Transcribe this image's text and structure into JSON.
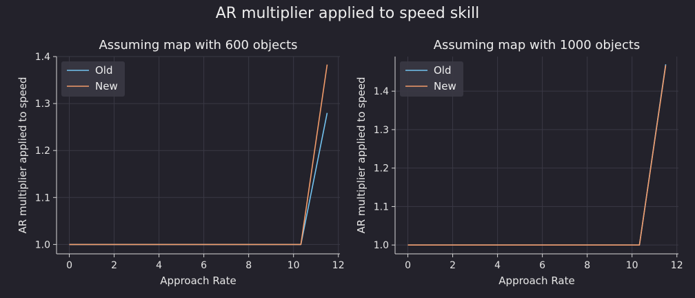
{
  "figure": {
    "title": "AR multiplier applied to speed skill"
  },
  "colors": {
    "background": "#23222b",
    "grid": "#3a3945",
    "axis": "#d8d8d8",
    "old": "#73c3f0",
    "new": "#f29c6b",
    "legend_bg": "#393842"
  },
  "chart_data": [
    {
      "type": "line",
      "title": "Assuming map with 600 objects",
      "xlabel": "Approach Rate",
      "ylabel": "AR multiplier applied to speed",
      "xlim": [
        -0.57,
        12.07
      ],
      "ylim": [
        0.98,
        1.4
      ],
      "xticks": [
        "0",
        "2",
        "4",
        "6",
        "8",
        "10",
        "12"
      ],
      "yticks": [
        "1.0",
        "1.1",
        "1.2",
        "1.3",
        "1.4"
      ],
      "legend": "upper-left",
      "grid": true,
      "series": [
        {
          "name": "Old",
          "color": "#73c3f0",
          "x": [
            0,
            10.33,
            11.5
          ],
          "y": [
            1.0,
            1.0,
            1.28
          ]
        },
        {
          "name": "New",
          "color": "#f29c6b",
          "x": [
            0,
            10.33,
            11.5
          ],
          "y": [
            1.0,
            1.0,
            1.383
          ]
        }
      ]
    },
    {
      "type": "line",
      "title": "Assuming map with 1000 objects",
      "xlabel": "Approach Rate",
      "ylabel": "AR multiplier applied to speed",
      "xlim": [
        -0.57,
        12.07
      ],
      "ylim": [
        0.977,
        1.49
      ],
      "xticks": [
        "0",
        "2",
        "4",
        "6",
        "8",
        "10",
        "12"
      ],
      "yticks": [
        "1.0",
        "1.1",
        "1.2",
        "1.3",
        "1.4"
      ],
      "legend": "upper-left",
      "grid": true,
      "series": [
        {
          "name": "Old",
          "color": "#73c3f0",
          "x": [
            0,
            10.33,
            11.5
          ],
          "y": [
            1.0,
            1.0,
            1.47
          ]
        },
        {
          "name": "New",
          "color": "#f29c6b",
          "x": [
            0,
            10.33,
            11.5
          ],
          "y": [
            1.0,
            1.0,
            1.467
          ]
        }
      ]
    }
  ]
}
